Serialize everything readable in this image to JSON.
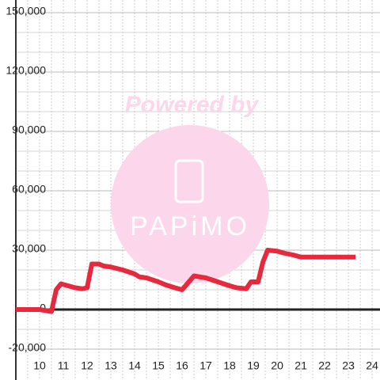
{
  "chart_data": {
    "type": "line",
    "watermark": {
      "text": "Powered by",
      "logo": "PAPiMO"
    },
    "xlim": [
      9,
      24.33
    ],
    "ylim": [
      -20000,
      150000
    ],
    "xticks": [
      10,
      11,
      12,
      13,
      14,
      15,
      16,
      17,
      18,
      19,
      20,
      21,
      22,
      23,
      24
    ],
    "minor_xticks": [
      9.5,
      10.5,
      11.5,
      12.5,
      13.5,
      14.5,
      15.5,
      16.5,
      17.5,
      18.5,
      19.5,
      20.5,
      21.5,
      22.5,
      23.5
    ],
    "yticks": [
      {
        "value": -20000,
        "label": "-20,000"
      },
      0,
      {
        "value": 30000,
        "label": "30,000"
      },
      {
        "value": 60000,
        "label": "60,000"
      },
      {
        "value": 90000,
        "label": "90,000"
      },
      {
        "value": 120000,
        "label": "120,000"
      },
      {
        "value": 150000,
        "label": "150,000"
      }
    ],
    "minor_yticks": [
      -10000,
      10000,
      20000,
      40000,
      50000,
      70000,
      80000,
      100000,
      110000,
      130000,
      140000
    ],
    "grid": true,
    "series": [
      {
        "color": "#e8283c",
        "x": [
          9,
          10,
          10.5,
          10.7,
          10.9,
          11.5,
          11.8,
          12,
          12.2,
          12.5,
          12.7,
          13,
          13.5,
          14,
          14.2,
          14.5,
          15,
          15.3,
          15.7,
          16,
          16.5,
          17,
          17.5,
          18,
          18.3,
          18.7,
          18.9,
          19.2,
          19.4,
          19.6,
          20,
          20.3,
          20.7,
          21,
          21.5,
          23.3
        ],
        "values": [
          0,
          0,
          -1000,
          10000,
          13000,
          11000,
          10500,
          11000,
          23000,
          23000,
          22000,
          21500,
          20000,
          18000,
          16500,
          16000,
          14000,
          12500,
          11000,
          10000,
          17000,
          16000,
          14000,
          12000,
          11000,
          10500,
          14000,
          14000,
          24000,
          30000,
          29500,
          28500,
          27500,
          26500,
          26500,
          26500
        ]
      }
    ]
  }
}
